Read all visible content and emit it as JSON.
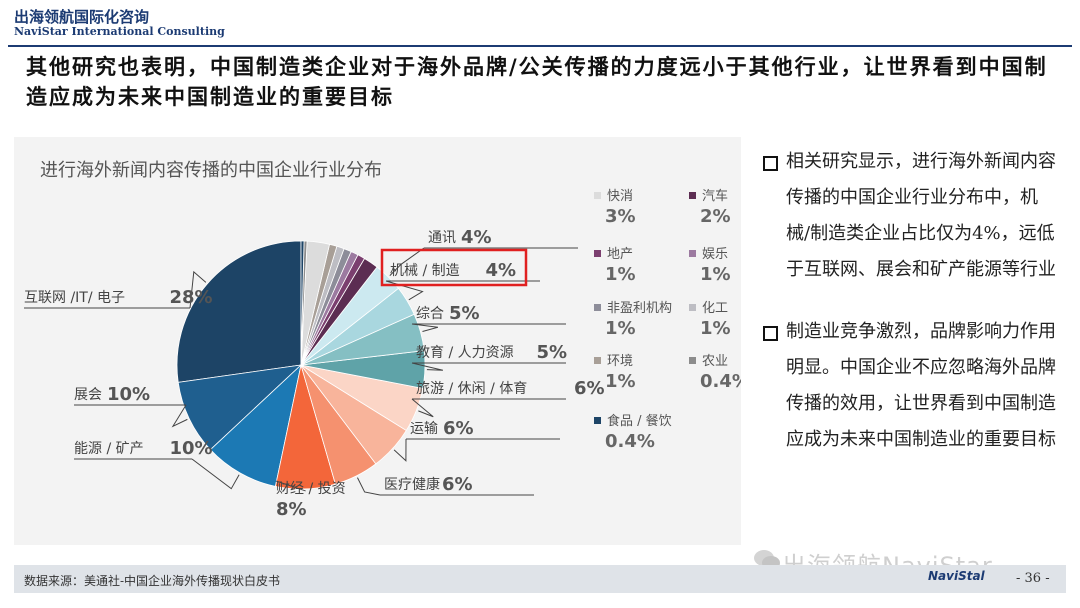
{
  "header": {
    "logo_cn": "出海领航国际化咨询",
    "logo_en": "NaviStar International Consulting",
    "headline": "其他研究也表明，中国制造类企业对于海外品牌/公关传播的力度远小于其他行业，让世界看到中国制造应成为未来中国制造业的重要目标"
  },
  "chart_data": {
    "type": "pie",
    "title": "进行海外新闻内容传播的中国企业行业分布",
    "unit": "%",
    "slices": [
      {
        "label": "互联网 /IT/ 电子",
        "value": 28,
        "display": "28%",
        "color": "#1d4466"
      },
      {
        "label": "展会",
        "value": 10,
        "display": "10%",
        "color": "#1f5f8f"
      },
      {
        "label": "能源 / 矿产",
        "value": 10,
        "display": "10%",
        "color": "#1c79b4"
      },
      {
        "label": "财经 / 投资",
        "value": 8,
        "display": "8%",
        "color": "#f3663a"
      },
      {
        "label": "医疗健康",
        "value": 6,
        "display": "6%",
        "color": "#f5916f"
      },
      {
        "label": "运输",
        "value": 6,
        "display": "6%",
        "color": "#f8b49b"
      },
      {
        "label": "旅游 / 休闲 / 体育",
        "value": 6,
        "display": "6%",
        "color": "#fbd5c6"
      },
      {
        "label": "教育 / 人力资源",
        "value": 5,
        "display": "5%",
        "color": "#5fa3a8"
      },
      {
        "label": "综合",
        "value": 5,
        "display": "5%",
        "color": "#85bfc3"
      },
      {
        "label": "机械 / 制造",
        "value": 4,
        "display": "4%",
        "color": "#a9d7df"
      },
      {
        "label": "通讯",
        "value": 4,
        "display": "4%",
        "color": "#cce9f0"
      },
      {
        "label": "汽车",
        "value": 2,
        "display": "2%",
        "color": "#5c2d52"
      },
      {
        "label": "地产",
        "value": 1,
        "display": "1%",
        "color": "#7b3f6f"
      },
      {
        "label": "娱乐",
        "value": 1,
        "display": "1%",
        "color": "#9c7aa0"
      },
      {
        "label": "非盈利机构",
        "value": 1,
        "display": "1%",
        "color": "#8d8d99"
      },
      {
        "label": "化工",
        "value": 1,
        "display": "1%",
        "color": "#bdbdc3"
      },
      {
        "label": "环境",
        "value": 1,
        "display": "1%",
        "color": "#a89f97"
      },
      {
        "label": "快消",
        "value": 3,
        "display": "3%",
        "color": "#dcdcdc"
      },
      {
        "label": "农业",
        "value": 0.4,
        "display": "0.4%",
        "color": "#8c8c8c"
      },
      {
        "label": "食品 / 餐饮",
        "value": 0.4,
        "display": "0.4%",
        "color": "#1d4466"
      }
    ],
    "legend_placement": "right",
    "highlighted": "机械 / 制造"
  },
  "text_panel": {
    "bullets": [
      "相关研究显示，进行海外新闻内容传播的中国企业行业分布中，机械/制造类企业占比仅为4%，远低于互联网、展会和矿产能源等行业",
      "制造业竞争激烈，品牌影响力作用明显。中国企业不应忽略海外品牌传播的效用，让世界看到中国制造应成为未来中国制造业的重要目标"
    ]
  },
  "footer": {
    "source": "数据来源：美通社-中国企业海外传播现状白皮书",
    "watermark": "出海领航NaviStar",
    "logo_text": "NaviStal",
    "page": "- 36 -"
  }
}
